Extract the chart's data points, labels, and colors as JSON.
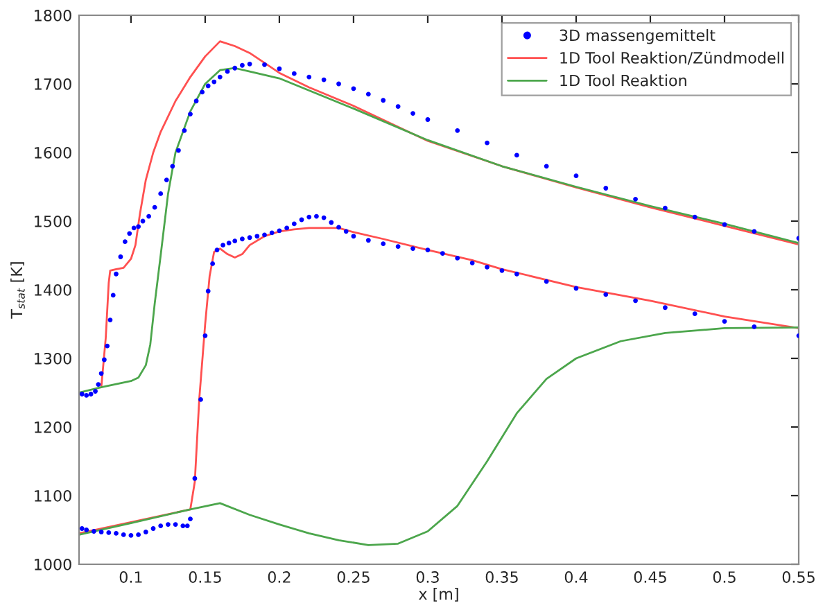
{
  "chart_data": {
    "type": "line",
    "xlabel": "x [m]",
    "ylabel": "T$_{stat}$ [K]",
    "xlim": [
      0.065,
      0.55
    ],
    "ylim": [
      1000,
      1800
    ],
    "xticks": [
      0.1,
      0.15,
      0.2,
      0.25,
      0.3,
      0.35,
      0.4,
      0.45,
      0.5,
      0.55
    ],
    "yticks": [
      1000,
      1100,
      1200,
      1300,
      1400,
      1500,
      1600,
      1700,
      1800
    ],
    "grid": false,
    "legend": "top right",
    "series": [
      {
        "name": "3D massengemittelt",
        "type": "scatter",
        "marker": "circle",
        "color": "#0000ff",
        "x": [
          0.067,
          0.07,
          0.073,
          0.076,
          0.078,
          0.08,
          0.082,
          0.084,
          0.086,
          0.088,
          0.09,
          0.093,
          0.096,
          0.099,
          0.102,
          0.105,
          0.108,
          0.112,
          0.116,
          0.12,
          0.124,
          0.128,
          0.132,
          0.136,
          0.14,
          0.144,
          0.148,
          0.152,
          0.156,
          0.16,
          0.165,
          0.17,
          0.175,
          0.18,
          0.19,
          0.2,
          0.21,
          0.22,
          0.23,
          0.24,
          0.25,
          0.26,
          0.27,
          0.28,
          0.29,
          0.3,
          0.32,
          0.34,
          0.36,
          0.38,
          0.4,
          0.42,
          0.44,
          0.46,
          0.48,
          0.5,
          0.52,
          0.55,
          null,
          0.067,
          0.07,
          0.075,
          0.08,
          0.085,
          0.09,
          0.095,
          0.1,
          0.105,
          0.11,
          0.115,
          0.12,
          0.125,
          0.13,
          0.135,
          0.138,
          0.14,
          0.143,
          0.147,
          0.15,
          0.152,
          0.155,
          0.158,
          0.162,
          0.166,
          0.17,
          0.175,
          0.18,
          0.185,
          0.19,
          0.195,
          0.2,
          0.205,
          0.21,
          0.215,
          0.22,
          0.225,
          0.23,
          0.235,
          0.24,
          0.245,
          0.25,
          0.26,
          0.27,
          0.28,
          0.29,
          0.3,
          0.31,
          0.32,
          0.33,
          0.34,
          0.35,
          0.36,
          0.38,
          0.4,
          0.42,
          0.44,
          0.46,
          0.48,
          0.5,
          0.52,
          0.55
        ],
        "values": [
          1248,
          1246,
          1248,
          1252,
          1262,
          1278,
          1298,
          1318,
          1356,
          1392,
          1423,
          1448,
          1470,
          1482,
          1490,
          1492,
          1500,
          1507,
          1520,
          1540,
          1560,
          1580,
          1603,
          1632,
          1656,
          1675,
          1688,
          1697,
          1703,
          1710,
          1718,
          1723,
          1727,
          1729,
          1728,
          1722,
          1715,
          1710,
          1706,
          1700,
          1693,
          1685,
          1676,
          1667,
          1657,
          1648,
          1632,
          1614,
          1596,
          1580,
          1566,
          1548,
          1532,
          1519,
          1506,
          1495,
          1485,
          1475,
          null,
          1052,
          1050,
          1048,
          1047,
          1046,
          1045,
          1043,
          1042,
          1043,
          1047,
          1052,
          1056,
          1058,
          1058,
          1056,
          1056,
          1066,
          1125,
          1240,
          1333,
          1398,
          1438,
          1458,
          1465,
          1468,
          1471,
          1474,
          1476,
          1478,
          1480,
          1483,
          1486,
          1490,
          1496,
          1502,
          1506,
          1507,
          1505,
          1498,
          1491,
          1485,
          1478,
          1472,
          1467,
          1463,
          1460,
          1458,
          1453,
          1446,
          1439,
          1433,
          1428,
          1423,
          1412,
          1402,
          1393,
          1384,
          1374,
          1365,
          1354,
          1346,
          1333
        ]
      },
      {
        "name": "1D Tool Reaktion/Zündmodell",
        "line_style": "solid",
        "color": "#ff5050",
        "x": [
          0.08,
          0.083,
          0.085,
          0.086,
          0.09,
          0.095,
          0.1,
          0.103,
          0.106,
          0.11,
          0.115,
          0.12,
          0.13,
          0.14,
          0.15,
          0.16,
          0.17,
          0.18,
          0.2,
          0.22,
          0.25,
          0.3,
          0.35,
          0.4,
          0.45,
          0.5,
          0.55,
          null,
          0.065,
          0.14,
          0.143,
          0.146,
          0.15,
          0.153,
          0.156,
          0.16,
          0.165,
          0.17,
          0.175,
          0.18,
          0.19,
          0.2,
          0.21,
          0.22,
          0.24,
          0.25,
          0.27,
          0.3,
          0.33,
          0.35,
          0.4,
          0.45,
          0.5,
          0.55
        ],
        "values": [
          1258,
          1330,
          1410,
          1428,
          1430,
          1432,
          1445,
          1465,
          1510,
          1560,
          1600,
          1630,
          1675,
          1710,
          1740,
          1762,
          1755,
          1745,
          1716,
          1695,
          1668,
          1617,
          1580,
          1549,
          1520,
          1493,
          1466,
          null,
          1045,
          1080,
          1120,
          1240,
          1350,
          1420,
          1455,
          1460,
          1452,
          1447,
          1452,
          1465,
          1478,
          1485,
          1488,
          1490,
          1490,
          1484,
          1474,
          1458,
          1443,
          1430,
          1404,
          1384,
          1361,
          1344
        ]
      },
      {
        "name": "1D Tool Reaktion",
        "line_style": "solid",
        "color": "#4ca64c",
        "x": [
          0.065,
          0.08,
          0.1,
          0.105,
          0.11,
          0.113,
          0.116,
          0.12,
          0.125,
          0.13,
          0.14,
          0.15,
          0.16,
          0.17,
          0.18,
          0.2,
          0.25,
          0.3,
          0.35,
          0.4,
          0.45,
          0.5,
          0.55,
          null,
          0.065,
          0.1,
          0.14,
          0.16,
          0.18,
          0.2,
          0.22,
          0.24,
          0.26,
          0.28,
          0.3,
          0.32,
          0.34,
          0.36,
          0.38,
          0.4,
          0.43,
          0.46,
          0.5,
          0.55
        ],
        "values": [
          1250,
          1258,
          1267,
          1272,
          1290,
          1320,
          1380,
          1450,
          1540,
          1600,
          1660,
          1700,
          1720,
          1723,
          1718,
          1708,
          1664,
          1618,
          1580,
          1550,
          1522,
          1496,
          1468,
          null,
          1043,
          1060,
          1080,
          1089,
          1072,
          1058,
          1045,
          1035,
          1028,
          1030,
          1048,
          1085,
          1150,
          1220,
          1270,
          1300,
          1325,
          1337,
          1344,
          1345
        ]
      }
    ]
  }
}
